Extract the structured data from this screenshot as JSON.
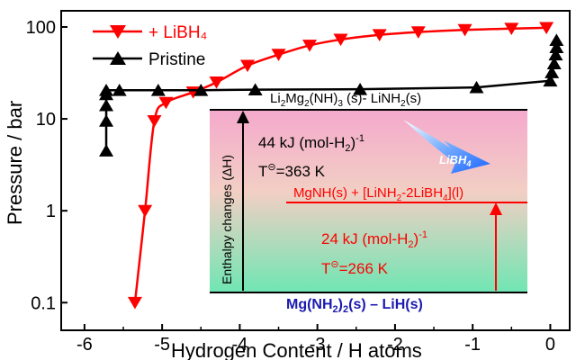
{
  "chart_data": {
    "type": "scatter",
    "xlabel": "Hydrogen Content / H atoms",
    "ylabel": "Pressure / bar",
    "xlim": [
      -6.3,
      0.25
    ],
    "ylim": [
      0.05,
      150
    ],
    "y_scale": "log",
    "x_ticks": [
      "-6",
      "-5",
      "-4",
      "-3",
      "-2",
      "-1",
      "0"
    ],
    "y_ticks": [
      "0.1",
      "1",
      "10",
      "100"
    ],
    "legend_position": "top-left",
    "series": [
      {
        "name": "+ LiBH₄",
        "color": "#ff0000",
        "marker": "triangle-down",
        "line": "curve",
        "x": [
          -5.35,
          -5.22,
          -5.1,
          -4.95,
          -4.6,
          -4.3,
          -3.9,
          -3.5,
          -3.1,
          -2.7,
          -2.2,
          -1.7,
          -1.1,
          -0.5,
          -0.05
        ],
        "y": [
          0.1,
          1.0,
          9.5,
          15,
          19.5,
          25,
          38,
          50,
          63,
          73,
          82,
          88,
          93,
          96,
          98
        ]
      },
      {
        "name": "Pristine",
        "color": "#000000",
        "marker": "triangle-up",
        "line": "straight",
        "x": [
          -5.72,
          -5.72,
          -5.72,
          -5.72,
          -5.72,
          -5.55,
          -5.05,
          -4.5,
          -3.8,
          -2.45,
          -0.95,
          0.0,
          0.02,
          0.05,
          0.07,
          0.08,
          0.08
        ],
        "y": [
          4.5,
          9.5,
          14,
          18.5,
          20.5,
          20.5,
          20.5,
          20.5,
          20.8,
          21,
          22,
          26,
          32,
          40,
          50,
          60,
          72
        ]
      }
    ],
    "annotations": {
      "top_level": "Li₂Mg₂(NH)₃ (s)- LiNH₂(s)",
      "middle_level": "MgNH(s) + [LiNH₂-2LiBH₄](l)",
      "bottom_level": "Mg(NH₂)₂(s) – LiH(s)",
      "arrow_label": "LiBH₄",
      "energy_axis_label": "Enthalpy changes (ΔH)",
      "pristine_enthalpy": "44 kJ (mol-H₂)⁻¹",
      "pristine_temperature": "T⊝=363 K",
      "libh4_enthalpy": "24 kJ (mol-H₂)⁻¹",
      "libh4_temperature": "T⊝=266 K"
    },
    "colors": {
      "inset_top": "#f4a9cc",
      "inset_bottom": "#6fe6b3",
      "arrow_blue": "#1a63ff",
      "bottom_level_text": "#1a1ab0"
    }
  }
}
